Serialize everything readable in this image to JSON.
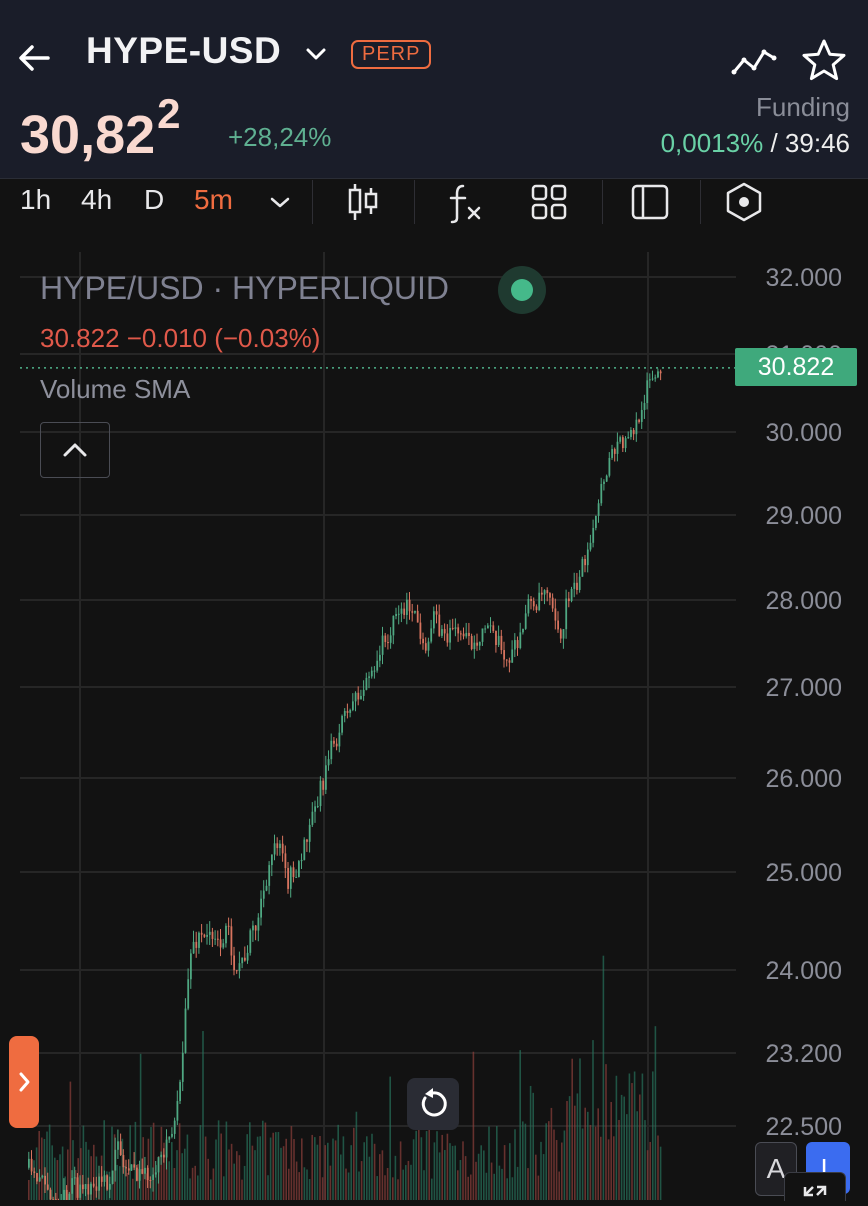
{
  "header": {
    "pair": "HYPE-USD",
    "badge": "PERP",
    "price_main": "30,82",
    "price_sup": "2",
    "change": "+28,24%",
    "funding_label": "Funding",
    "funding_rate": "0,0013%",
    "funding_sep": "/",
    "funding_countdown": "39:46"
  },
  "toolbar": {
    "timeframes": [
      "1h",
      "4h",
      "D",
      "5m"
    ],
    "active_timeframe": "5m"
  },
  "legend": {
    "title": "HYPE/USD · HYPERLIQUID",
    "ohlc": "30.822  −0.010 (−0.03%)",
    "volume": "Volume SMA"
  },
  "chart_data": {
    "type": "candlestick",
    "current_price": 30.822,
    "current_price_label": "30.822",
    "y_tick_labels": [
      "32.000",
      "31.000",
      "30.000",
      "29.000",
      "28.000",
      "27.000",
      "26.000",
      "25.000",
      "24.000",
      "23.200",
      "22.500"
    ],
    "y_tick_values": [
      32.0,
      31.0,
      30.0,
      29.0,
      28.0,
      27.0,
      26.0,
      25.0,
      24.0,
      23.2,
      22.5
    ],
    "trend_close": [
      22.1,
      22.05,
      21.9,
      21.85,
      21.8,
      21.85,
      21.95,
      21.9,
      21.95,
      22.0,
      21.9,
      22.05,
      22.3,
      22.1,
      22.05,
      22.1,
      22.0,
      22.15,
      22.2,
      22.3,
      22.6,
      23.4,
      24.2,
      24.35,
      24.4,
      24.25,
      24.3,
      24.4,
      24.05,
      24.1,
      24.3,
      24.5,
      24.9,
      25.2,
      25.25,
      24.9,
      25.0,
      25.2,
      25.4,
      25.7,
      26.0,
      26.3,
      26.5,
      26.7,
      26.85,
      26.9,
      27.1,
      27.3,
      27.5,
      27.6,
      27.85,
      27.9,
      27.95,
      27.65,
      27.5,
      27.8,
      27.6,
      27.6,
      27.7,
      27.55,
      27.5,
      27.6,
      27.7,
      27.55,
      27.45,
      27.3,
      27.5,
      27.7,
      28.0,
      27.95,
      28.1,
      27.85,
      27.5,
      28.0,
      28.1,
      28.35,
      28.7,
      29.1,
      29.45,
      29.75,
      29.9,
      29.85,
      30.0,
      30.3,
      30.6,
      30.75,
      30.82
    ],
    "x_label_count": 0
  }
}
